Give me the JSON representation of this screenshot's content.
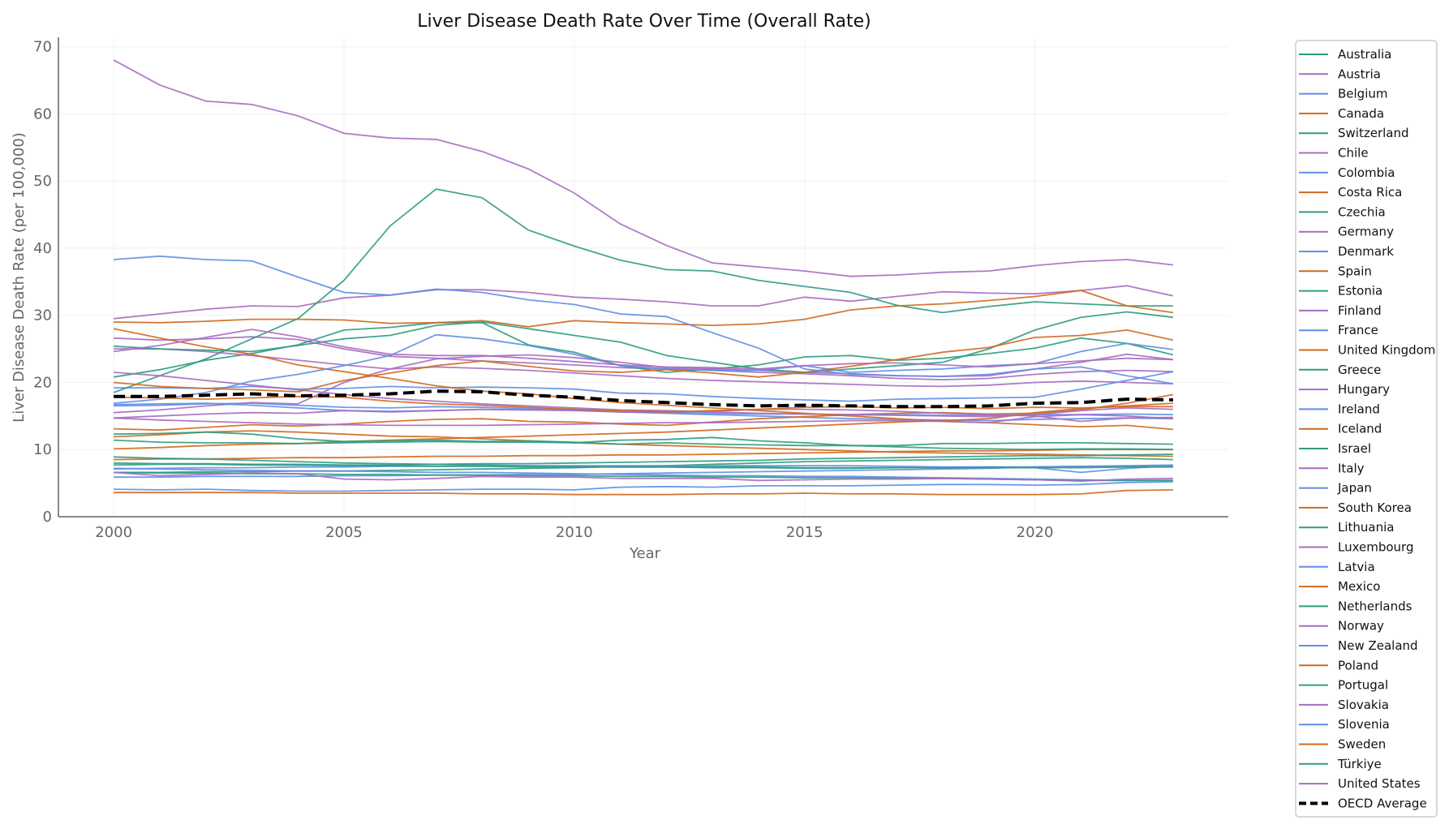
{
  "chart_data": {
    "type": "line",
    "title": "Liver Disease Death Rate Over Time (Overall Rate)",
    "xlabel": "Year",
    "ylabel": "Liver Disease Death Rate (per 100,000)",
    "xlim": [
      1998.8,
      2024.2
    ],
    "ylim": [
      0,
      71.4
    ],
    "xticks": [
      2000,
      2005,
      2010,
      2015,
      2020
    ],
    "yticks": [
      0,
      10,
      20,
      30,
      40,
      50,
      60,
      70
    ],
    "grid": true,
    "legend_placement": "outside-right",
    "palette": [
      "#2e9c82",
      "#a86cc1",
      "#5e8fe6",
      "#d2691e"
    ],
    "x": [
      2000,
      2001,
      2002,
      2003,
      2004,
      2005,
      2006,
      2007,
      2008,
      2009,
      2010,
      2011,
      2012,
      2013,
      2014,
      2015,
      2016,
      2017,
      2018,
      2019,
      2020,
      2021,
      2022,
      2023
    ],
    "series": [
      {
        "name": "Australia",
        "values": [
          6.6,
          6.6,
          6.7,
          6.7,
          6.8,
          6.8,
          6.9,
          7.0,
          7.1,
          7.2,
          7.3,
          7.5,
          7.6,
          7.8,
          8.0,
          8.2,
          8.3,
          8.4,
          8.5,
          8.6,
          8.7,
          8.8,
          8.7,
          8.5
        ]
      },
      {
        "name": "Austria",
        "values": [
          26.6,
          26.3,
          26.5,
          26.8,
          26.4,
          25.0,
          23.9,
          23.6,
          23.2,
          22.9,
          22.6,
          22.2,
          22.0,
          21.8,
          21.5,
          21.3,
          21.0,
          20.6,
          20.4,
          20.6,
          21.2,
          21.6,
          21.8,
          21.6
        ]
      },
      {
        "name": "Belgium",
        "values": [
          16.5,
          16.6,
          16.8,
          16.9,
          16.6,
          16.3,
          16.2,
          16.4,
          16.3,
          16.1,
          16.0,
          15.6,
          15.4,
          15.2,
          15.0,
          14.8,
          14.6,
          14.5,
          14.4,
          14.3,
          14.5,
          14.6,
          14.7,
          14.6
        ]
      },
      {
        "name": "Canada",
        "values": [
          8.5,
          8.6,
          8.6,
          8.7,
          8.8,
          8.8,
          8.9,
          9.0,
          9.0,
          9.1,
          9.1,
          9.2,
          9.2,
          9.3,
          9.4,
          9.5,
          9.6,
          9.7,
          9.8,
          9.8,
          9.9,
          10.0,
          10.0,
          10.0
        ]
      },
      {
        "name": "Switzerland",
        "values": [
          8.9,
          8.7,
          8.6,
          8.4,
          8.2,
          8.0,
          7.9,
          7.8,
          7.7,
          7.6,
          7.5,
          7.4,
          7.4,
          7.3,
          7.3,
          7.2,
          7.2,
          7.3,
          7.3,
          7.4,
          7.4,
          7.5,
          7.5,
          7.5
        ]
      },
      {
        "name": "Chile",
        "values": [
          29.5,
          30.2,
          30.9,
          31.4,
          31.3,
          32.6,
          33.0,
          33.8,
          33.8,
          33.4,
          32.7,
          32.4,
          32.0,
          31.4,
          31.4,
          32.7,
          32.1,
          32.8,
          33.5,
          33.3,
          33.2,
          33.7,
          34.4,
          32.9
        ]
      },
      {
        "name": "Colombia",
        "values": [
          5.9,
          5.9,
          6.0,
          6.0,
          6.0,
          6.1,
          6.1,
          6.2,
          6.2,
          6.3,
          6.3,
          6.4,
          6.5,
          6.6,
          6.7,
          6.8,
          6.9,
          7.0,
          7.1,
          7.2,
          7.4,
          7.5,
          7.6,
          7.7
        ]
      },
      {
        "name": "Costa Rica",
        "values": [
          13.1,
          12.9,
          13.3,
          13.7,
          13.5,
          13.8,
          14.2,
          14.5,
          14.6,
          14.2,
          14.1,
          13.8,
          13.6,
          14.1,
          14.6,
          14.9,
          15.2,
          15.4,
          15.5,
          15.3,
          15.4,
          15.9,
          16.9,
          18.2
        ]
      },
      {
        "name": "Czechia",
        "values": [
          20.8,
          21.9,
          23.3,
          24.3,
          25.6,
          27.8,
          28.2,
          28.9,
          28.9,
          25.6,
          24.5,
          22.5,
          21.5,
          22.0,
          22.6,
          23.8,
          24.0,
          23.3,
          23.6,
          24.3,
          25.1,
          26.6,
          25.8,
          24.1
        ]
      },
      {
        "name": "Germany",
        "values": [
          25.0,
          25.0,
          24.6,
          24.0,
          23.3,
          22.6,
          22.0,
          22.3,
          22.1,
          21.8,
          21.4,
          21.0,
          20.6,
          20.3,
          20.1,
          19.9,
          19.7,
          19.5,
          19.4,
          19.6,
          20.0,
          20.2,
          20.0,
          19.8
        ]
      },
      {
        "name": "Denmark",
        "values": [
          19.2,
          19.2,
          19.1,
          19.4,
          19.0,
          19.1,
          19.4,
          19.2,
          19.3,
          19.2,
          19.0,
          18.4,
          18.3,
          17.9,
          17.6,
          17.4,
          17.2,
          17.5,
          17.6,
          17.7,
          17.8,
          19.0,
          20.3,
          21.6
        ]
      },
      {
        "name": "Spain",
        "values": [
          11.9,
          12.2,
          12.6,
          12.8,
          12.6,
          12.3,
          12.0,
          11.9,
          11.6,
          11.3,
          11.0,
          10.8,
          10.6,
          10.4,
          10.2,
          10.0,
          9.8,
          9.6,
          9.5,
          9.4,
          9.3,
          9.2,
          9.1,
          9.0
        ]
      },
      {
        "name": "Estonia",
        "values": [
          18.5,
          21.0,
          23.5,
          26.5,
          29.5,
          35.2,
          43.3,
          48.8,
          47.5,
          42.7,
          40.3,
          38.2,
          36.8,
          36.6,
          35.2,
          34.3,
          33.4,
          31.5,
          30.4,
          31.3,
          32.0,
          31.7,
          31.4,
          31.4
        ]
      },
      {
        "name": "Finland",
        "values": [
          15.5,
          15.9,
          16.5,
          17.0,
          16.8,
          20.0,
          22.0,
          23.5,
          23.9,
          24.1,
          23.7,
          23.0,
          22.2,
          22.0,
          21.8,
          21.5,
          21.3,
          21.0,
          20.9,
          21.0,
          22.0,
          23.0,
          24.2,
          23.4
        ]
      },
      {
        "name": "France",
        "values": [
          16.7,
          16.8,
          16.9,
          16.6,
          16.2,
          15.8,
          15.7,
          15.8,
          16.0,
          15.9,
          15.8,
          15.6,
          15.5,
          15.4,
          15.3,
          15.3,
          15.2,
          15.2,
          15.1,
          15.1,
          15.2,
          15.2,
          15.3,
          15.2
        ]
      },
      {
        "name": "United Kingdom",
        "values": [
          10.1,
          10.3,
          10.6,
          10.8,
          10.9,
          11.2,
          11.4,
          11.6,
          11.8,
          12.0,
          12.2,
          12.4,
          12.6,
          12.9,
          13.2,
          13.5,
          13.8,
          14.1,
          14.3,
          14.6,
          15.5,
          16.1,
          16.5,
          16.9
        ]
      },
      {
        "name": "Greece",
        "values": [
          12.3,
          12.4,
          12.6,
          12.3,
          11.6,
          11.2,
          11.3,
          11.4,
          11.2,
          11.3,
          11.1,
          10.8,
          11.0,
          10.8,
          10.7,
          10.6,
          10.6,
          10.6,
          10.9,
          10.9,
          11.0,
          11.0,
          10.9,
          10.8
        ]
      },
      {
        "name": "Hungary",
        "values": [
          68.0,
          64.3,
          61.9,
          61.4,
          59.7,
          57.1,
          56.4,
          56.2,
          54.4,
          51.8,
          48.2,
          43.6,
          40.4,
          37.8,
          37.2,
          36.6,
          35.8,
          36.0,
          36.4,
          36.6,
          37.4,
          38.0,
          38.3,
          37.5
        ]
      },
      {
        "name": "Ireland",
        "values": [
          7.1,
          7.2,
          7.3,
          7.3,
          7.4,
          7.4,
          7.5,
          7.5,
          7.6,
          7.6,
          7.6,
          7.6,
          7.6,
          7.6,
          7.6,
          7.6,
          7.6,
          7.5,
          7.4,
          7.4,
          7.3,
          6.6,
          7.2,
          7.6
        ]
      },
      {
        "name": "Iceland",
        "values": [
          3.6,
          3.6,
          3.6,
          3.6,
          3.5,
          3.5,
          3.5,
          3.5,
          3.4,
          3.4,
          3.3,
          3.3,
          3.3,
          3.4,
          3.4,
          3.5,
          3.4,
          3.4,
          3.3,
          3.3,
          3.3,
          3.4,
          3.9,
          4.0
        ]
      },
      {
        "name": "Israel",
        "values": [
          7.7,
          7.8,
          7.8,
          7.7,
          7.7,
          7.6,
          7.6,
          7.5,
          7.5,
          7.4,
          7.4,
          7.4,
          7.4,
          7.4,
          7.4,
          7.3,
          7.3,
          7.3,
          7.3,
          7.3,
          7.3,
          7.3,
          7.4,
          7.4
        ]
      },
      {
        "name": "Italy",
        "values": [
          21.5,
          21.0,
          20.3,
          19.6,
          18.9,
          18.2,
          17.6,
          17.2,
          16.8,
          16.5,
          16.2,
          15.9,
          15.8,
          15.6,
          15.4,
          15.3,
          15.2,
          15.1,
          15.0,
          14.9,
          15.2,
          15.8,
          16.2,
          16.0
        ]
      },
      {
        "name": "Japan",
        "values": [
          7.2,
          7.1,
          7.0,
          6.9,
          6.8,
          6.8,
          6.7,
          6.6,
          6.6,
          6.5,
          6.4,
          6.3,
          6.2,
          6.1,
          6.1,
          6.0,
          6.0,
          5.9,
          5.8,
          5.7,
          5.6,
          5.5,
          5.4,
          5.4
        ]
      },
      {
        "name": "South Korea",
        "values": [
          28.0,
          26.6,
          25.3,
          24.2,
          22.6,
          21.6,
          20.6,
          19.5,
          18.7,
          18.3,
          17.6,
          17.0,
          16.6,
          16.2,
          15.8,
          15.4,
          15.0,
          14.6,
          14.2,
          14.0,
          13.7,
          13.4,
          13.6,
          13.0
        ]
      },
      {
        "name": "Lithuania",
        "values": [
          25.4,
          25.0,
          24.8,
          24.6,
          25.5,
          26.5,
          27.0,
          28.5,
          29.0,
          28.0,
          27.0,
          26.0,
          24.0,
          23.0,
          22.0,
          21.5,
          22.0,
          22.5,
          23.0,
          25.0,
          27.8,
          29.7,
          30.5,
          29.7
        ]
      },
      {
        "name": "Luxembourg",
        "values": [
          14.7,
          15.0,
          15.3,
          15.5,
          15.4,
          15.8,
          15.6,
          15.8,
          16.0,
          15.9,
          15.9,
          15.6,
          15.6,
          15.7,
          16.0,
          16.0,
          15.9,
          15.7,
          15.4,
          15.2,
          15.0,
          14.2,
          14.7,
          14.8
        ]
      },
      {
        "name": "Latvia",
        "values": [
          16.9,
          17.5,
          18.5,
          20.2,
          21.2,
          22.5,
          24.0,
          27.1,
          26.5,
          25.5,
          24.2,
          22.5,
          22.0,
          21.8,
          21.8,
          22.5,
          21.5,
          21.8,
          22.0,
          22.5,
          22.8,
          24.6,
          25.8,
          24.9
        ]
      },
      {
        "name": "Mexico",
        "values": [
          29.0,
          28.9,
          29.1,
          29.4,
          29.4,
          29.3,
          28.8,
          28.9,
          29.2,
          28.3,
          29.2,
          28.9,
          28.7,
          28.5,
          28.7,
          29.4,
          30.8,
          31.4,
          31.7,
          32.2,
          32.8,
          33.7,
          31.4,
          30.4
        ]
      },
      {
        "name": "Netherlands",
        "values": [
          6.6,
          6.5,
          6.5,
          6.4,
          6.4,
          6.3,
          6.3,
          6.2,
          6.2,
          6.1,
          6.1,
          6.0,
          6.0,
          5.9,
          5.9,
          5.8,
          5.8,
          5.7,
          5.7,
          5.6,
          5.5,
          5.4,
          5.4,
          5.4
        ]
      },
      {
        "name": "Norway",
        "values": [
          6.6,
          6.1,
          6.3,
          6.5,
          6.4,
          5.6,
          5.5,
          5.7,
          6.0,
          5.9,
          5.9,
          5.7,
          5.7,
          5.7,
          5.4,
          5.5,
          5.6,
          5.6,
          5.7,
          5.6,
          5.5,
          5.3,
          5.6,
          5.7
        ]
      },
      {
        "name": "New Zealand",
        "values": [
          4.1,
          4.0,
          4.1,
          3.9,
          3.8,
          3.8,
          3.9,
          4.0,
          4.1,
          4.1,
          4.0,
          4.4,
          4.5,
          4.4,
          4.6,
          4.6,
          4.6,
          4.7,
          4.8,
          4.8,
          4.7,
          4.8,
          5.1,
          5.2
        ]
      },
      {
        "name": "Poland",
        "values": [
          20.0,
          19.4,
          19.1,
          18.9,
          18.6,
          20.3,
          21.4,
          22.5,
          23.2,
          22.4,
          21.7,
          21.5,
          21.9,
          21.4,
          20.8,
          21.5,
          22.4,
          23.4,
          24.5,
          25.2,
          26.7,
          27.0,
          27.8,
          26.3
        ]
      },
      {
        "name": "Portugal",
        "values": [
          11.4,
          11.1,
          11.0,
          11.0,
          10.9,
          11.0,
          11.1,
          11.2,
          11.1,
          11.1,
          11.0,
          11.4,
          11.5,
          11.8,
          11.3,
          11.0,
          10.6,
          10.4,
          10.2,
          10.1,
          10.0,
          10.1,
          10.1,
          10.0
        ]
      },
      {
        "name": "Slovakia",
        "values": [
          24.6,
          25.5,
          26.7,
          27.9,
          26.8,
          25.3,
          24.2,
          24.0,
          24.0,
          23.6,
          23.1,
          22.6,
          22.3,
          22.2,
          22.0,
          22.5,
          22.8,
          22.9,
          22.6,
          22.3,
          22.8,
          23.2,
          23.6,
          23.4
        ]
      },
      {
        "name": "Slovenia",
        "values": [
          38.3,
          38.8,
          38.3,
          38.1,
          35.7,
          33.4,
          33.0,
          33.9,
          33.4,
          32.3,
          31.6,
          30.2,
          29.8,
          27.4,
          25.1,
          22.0,
          21.2,
          21.0,
          20.9,
          21.2,
          22.0,
          22.3,
          21.0,
          19.8
        ]
      },
      {
        "name": "Sweden",
        "values": [
          17.8,
          17.7,
          17.5,
          17.7,
          17.9,
          17.8,
          17.2,
          16.8,
          16.6,
          16.3,
          16.0,
          15.8,
          15.6,
          15.8,
          16.0,
          16.3,
          16.4,
          16.2,
          16.3,
          16.1,
          16.3,
          16.2,
          16.4,
          16.4
        ]
      },
      {
        "name": "Türkiye",
        "values": [
          8.0,
          7.9,
          7.9,
          7.8,
          7.8,
          7.7,
          7.7,
          7.8,
          7.9,
          7.9,
          8.0,
          8.1,
          8.2,
          8.3,
          8.4,
          8.6,
          8.7,
          8.8,
          8.9,
          9.0,
          9.1,
          9.1,
          9.2,
          9.3
        ]
      },
      {
        "name": "United States",
        "values": [
          14.7,
          14.4,
          14.2,
          14.0,
          13.8,
          13.7,
          13.6,
          13.6,
          13.6,
          13.7,
          13.8,
          13.9,
          14.0,
          14.0,
          14.1,
          14.2,
          14.3,
          14.3,
          14.2,
          14.0,
          14.9,
          15.2,
          15.0,
          14.6
        ]
      }
    ],
    "average": {
      "name": "OECD Average",
      "color": "#000000",
      "style": "dashed",
      "values": [
        17.9,
        17.9,
        18.1,
        18.3,
        18.0,
        18.1,
        18.3,
        18.7,
        18.6,
        18.1,
        17.8,
        17.3,
        17.0,
        16.7,
        16.5,
        16.6,
        16.5,
        16.4,
        16.4,
        16.5,
        16.9,
        17.0,
        17.5,
        17.4
      ]
    }
  }
}
